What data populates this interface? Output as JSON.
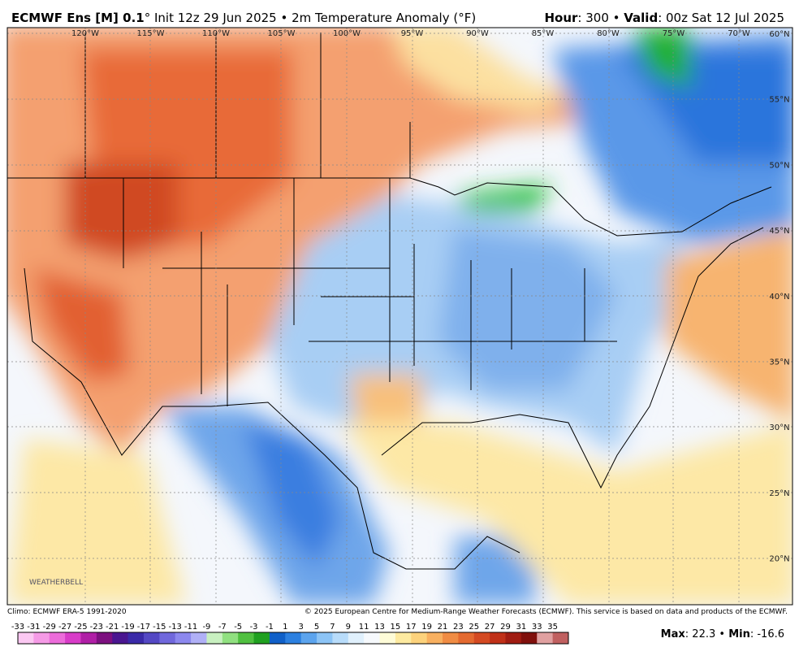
{
  "header": {
    "model": "ECMWF Ens [M] 0.1",
    "info": "° Init 12z 29 Jun 2025 • 2m Temperature Anomaly (°F)",
    "hour_label": "Hour",
    "hour_value": ": 300 • ",
    "valid_label": "Valid",
    "valid_value": ": 00z Sat 12 Jul 2025"
  },
  "map": {
    "lon_labels": [
      "120°W",
      "115°W",
      "110°W",
      "105°W",
      "100°W",
      "95°W",
      "90°W",
      "85°W",
      "80°W",
      "75°W",
      "70°W"
    ],
    "lat_labels": [
      "60°N",
      "55°N",
      "50°N",
      "45°N",
      "40°N",
      "35°N",
      "30°N",
      "25°N",
      "20°N"
    ],
    "logo": "WEATHERBELL"
  },
  "footer": {
    "climo": "Climo: ECMWF ERA-5 1991-2020",
    "copyright": "© 2025 European Centre for Medium-Range Weather Forecasts (ECMWF). This service is based on data and products of the ECMWF."
  },
  "colorbar": {
    "ticks": [
      -33,
      -31,
      -29,
      -27,
      -25,
      -23,
      -21,
      -19,
      -17,
      -15,
      -13,
      -11,
      -9,
      -7,
      -5,
      -3,
      -1,
      1,
      3,
      5,
      7,
      9,
      11,
      13,
      15,
      17,
      19,
      21,
      23,
      25,
      27,
      29,
      31,
      33,
      35
    ],
    "colors": [
      "#fbc8f2",
      "#f59ae6",
      "#ec6cda",
      "#d83cc8",
      "#b01fa6",
      "#7d1080",
      "#4a1690",
      "#3a2aa8",
      "#5448c4",
      "#7068dc",
      "#8c88ee",
      "#b0b0f6",
      "#c8f0c0",
      "#90e080",
      "#50c040",
      "#20a020",
      "#1060c8",
      "#2c80e0",
      "#5ca4ee",
      "#8cc4f6",
      "#b8dcfa",
      "#e0f0fc",
      "#f6f9fc",
      "#fefcd8",
      "#fdeaa0",
      "#fcd27c",
      "#f8b060",
      "#f08c44",
      "#e46a30",
      "#d44a22",
      "#c03018",
      "#a01c12",
      "#80100c",
      "#e0a0a0",
      "#c06060"
    ]
  },
  "stats": {
    "max_label": "Max",
    "max_value": 22.3,
    "sep": " • ",
    "min_label": "Min",
    "min_value": -16.6
  }
}
